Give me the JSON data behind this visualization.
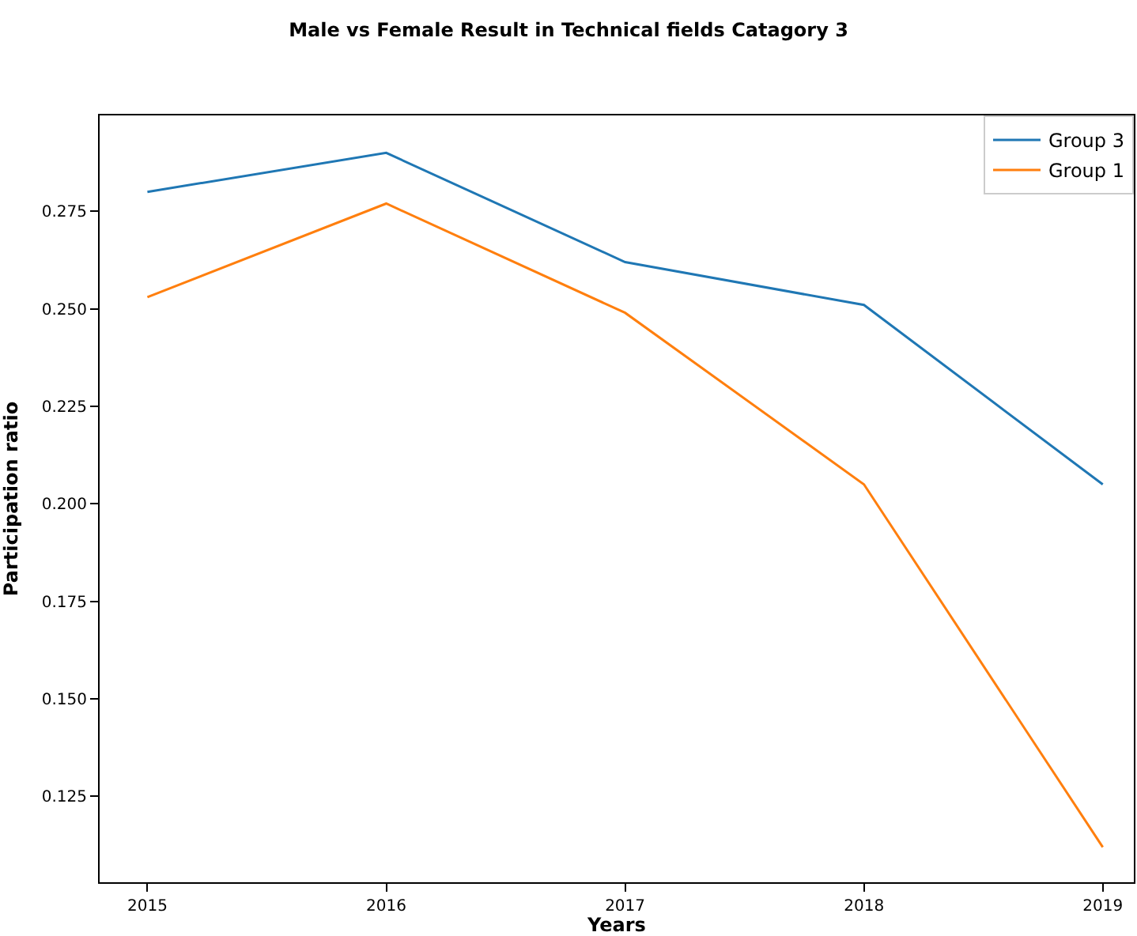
{
  "chart_data": {
    "type": "line",
    "title": "Male vs Female Result in Technical fields Catagory 3",
    "xlabel": "Years",
    "ylabel": "Participation ratio",
    "x": [
      2015,
      2016,
      2017,
      2018,
      2019
    ],
    "series": [
      {
        "name": "Group 3",
        "color": "#1f77b4",
        "values": [
          0.28,
          0.29,
          0.262,
          0.251,
          0.205
        ]
      },
      {
        "name": "Group 1",
        "color": "#ff7f0e",
        "values": [
          0.253,
          0.277,
          0.249,
          0.205,
          0.112
        ]
      }
    ],
    "xlim": [
      2014.8,
      2019.13
    ],
    "xticks": [
      2015,
      2016,
      2017,
      2018,
      2019
    ],
    "ylim": [
      0.103,
      0.2996
    ],
    "yticks": [
      {
        "value": 0.125,
        "label": "0.125"
      },
      {
        "value": 0.15,
        "label": "0.150"
      },
      {
        "value": 0.175,
        "label": "0.175"
      },
      {
        "value": 0.2,
        "label": "0.200"
      },
      {
        "value": 0.225,
        "label": "0.225"
      },
      {
        "value": 0.25,
        "label": "0.250"
      },
      {
        "value": 0.275,
        "label": "0.275"
      }
    ],
    "legend": "top right",
    "marker": "none",
    "line_style": "solid"
  }
}
